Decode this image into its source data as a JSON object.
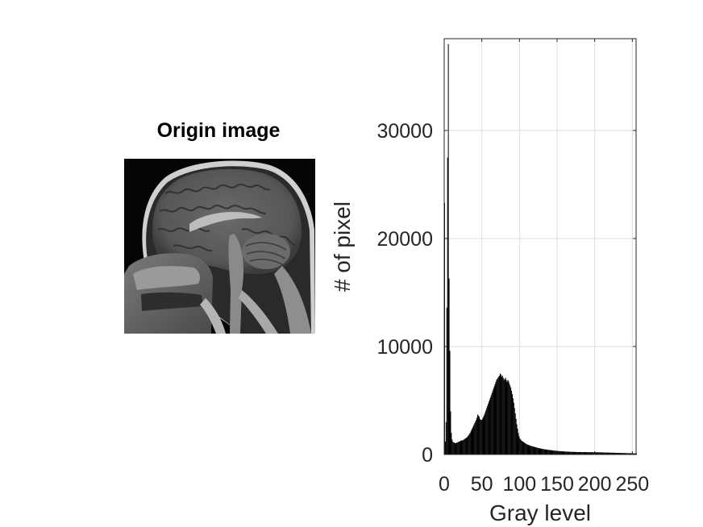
{
  "left_panel": {
    "title": "Origin image",
    "image_desc": "mri-sagittal-head-slice"
  },
  "chart_data": {
    "type": "bar",
    "title": "",
    "xlabel": "Gray level",
    "ylabel": "# of pixel",
    "xlim": [
      0,
      255
    ],
    "ylim": [
      0,
      38500
    ],
    "xticks": [
      0,
      50,
      100,
      150,
      200,
      250
    ],
    "xtick_labels": [
      "0",
      "50",
      "100",
      "150",
      "200",
      "250"
    ],
    "yticks": [
      0,
      10000,
      20000,
      30000
    ],
    "ytick_labels": [
      "0",
      "10000",
      "20000",
      "30000"
    ],
    "grid": true,
    "bar_color": "#000000",
    "series": [
      {
        "values": [
          23300,
          1200,
          3000,
          13600,
          27500,
          38000,
          16300,
          9600,
          4000,
          2000,
          1400,
          1200,
          1100,
          1100,
          1050,
          1050,
          1100,
          1100,
          1150,
          1200,
          1200,
          1250,
          1300,
          1300,
          1300,
          1350,
          1400,
          1450,
          1500,
          1550,
          1600,
          1700,
          1800,
          1900,
          2000,
          2150,
          2300,
          2450,
          2600,
          2750,
          2900,
          3050,
          3200,
          3400,
          3700,
          3600,
          3500,
          3300,
          3200,
          3200,
          3250,
          3400,
          3550,
          3700,
          3900,
          4100,
          4300,
          4500,
          4700,
          4900,
          5100,
          5300,
          5500,
          5700,
          5900,
          6100,
          6300,
          6500,
          6700,
          6900,
          7000,
          7100,
          7200,
          7300,
          7500,
          7400,
          7200,
          7300,
          7100,
          6900,
          7000,
          7100,
          6900,
          6700,
          6900,
          6800,
          6600,
          6400,
          6200,
          5900,
          5600,
          5200,
          4800,
          4300,
          3800,
          3300,
          2800,
          2400,
          2000,
          1700,
          1500,
          1400,
          1300,
          1250,
          1200,
          1150,
          1100,
          1050,
          1000,
          960,
          930,
          900,
          870,
          840,
          810,
          790,
          770,
          750,
          730,
          710,
          690,
          670,
          650,
          630,
          610,
          595,
          580,
          565,
          550,
          535,
          520,
          505,
          490,
          480,
          470,
          460,
          450,
          440,
          430,
          420,
          410,
          400,
          392,
          384,
          376,
          368,
          360,
          352,
          345,
          338,
          331,
          324,
          318,
          312,
          306,
          300,
          295,
          290,
          285,
          280,
          276,
          272,
          268,
          264,
          260,
          256,
          253,
          250,
          247,
          244,
          242,
          240,
          238,
          236,
          234,
          232,
          230,
          228,
          226,
          224,
          223,
          222,
          221,
          220,
          219,
          218,
          217,
          216,
          215,
          214,
          213,
          212,
          211,
          210,
          209,
          208,
          207,
          206,
          205,
          204,
          203,
          202,
          201,
          200,
          199,
          198,
          196,
          194,
          192,
          190,
          188,
          186,
          184,
          182,
          180,
          178,
          176,
          174,
          172,
          170,
          168,
          166,
          164,
          162,
          160,
          158,
          156,
          154,
          152,
          150,
          148,
          146,
          144,
          142,
          140,
          138,
          136,
          134,
          132,
          130,
          128,
          126,
          124,
          122,
          120,
          118,
          116,
          114,
          112,
          110,
          108,
          106,
          104,
          102,
          100,
          98
        ]
      }
    ]
  }
}
